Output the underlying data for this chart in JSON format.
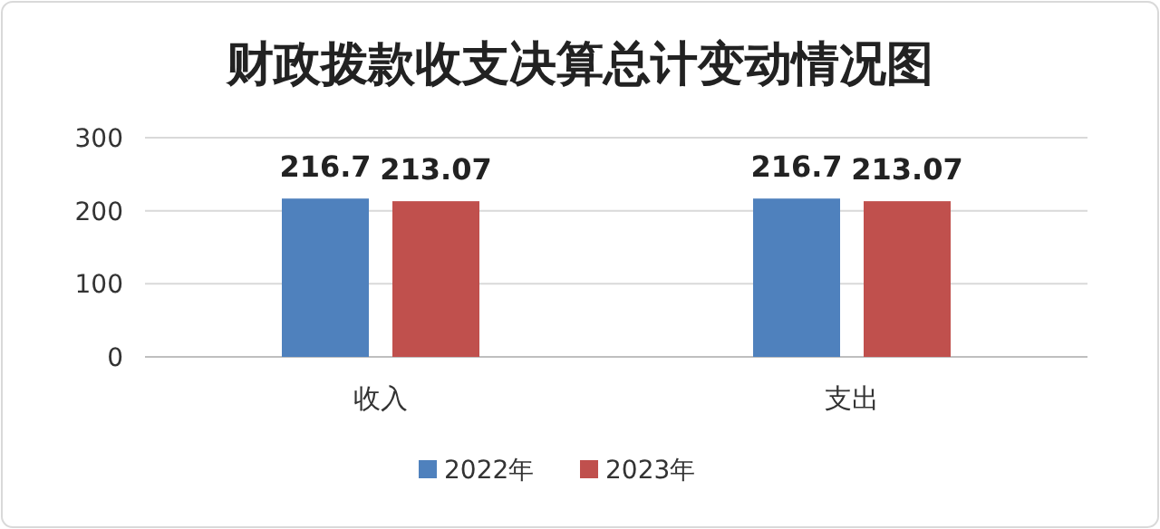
{
  "chart_data": {
    "type": "bar",
    "title": "财政拨款收支决算总计变动情况图",
    "categories": [
      "收入",
      "支出"
    ],
    "series": [
      {
        "name": "2022年",
        "color": "#4f81bd",
        "values": [
          216.7,
          216.7
        ]
      },
      {
        "name": "2023年",
        "color": "#c0504d",
        "values": [
          213.07,
          213.07
        ]
      }
    ],
    "ylim": [
      0,
      300
    ],
    "yticks": [
      0,
      100,
      200,
      300
    ],
    "grid": "y",
    "legend": "bottom",
    "data_labels": true
  }
}
